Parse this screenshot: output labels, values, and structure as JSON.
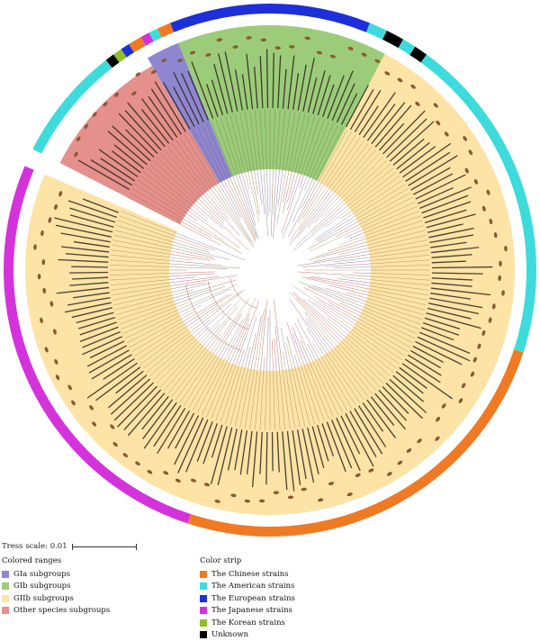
{
  "scale": {
    "label": "Tress scale: 0.01"
  },
  "legend_ranges": {
    "title": "Colored ranges",
    "items": [
      {
        "label": "GIa subgroups",
        "color": "#8e86cf"
      },
      {
        "label": "GIb subgroups",
        "color": "#9ccc7a"
      },
      {
        "label": "GIIb subgroups",
        "color": "#fde3a6"
      },
      {
        "label": "Other species subgroups",
        "color": "#e5908c"
      }
    ]
  },
  "legend_strip": {
    "title": "Color strip",
    "items": [
      {
        "label": "The Chinese strains",
        "color": "#f07a24"
      },
      {
        "label": "The American strains",
        "color": "#3ddbdb"
      },
      {
        "label": "The European strains",
        "color": "#1d2fd8"
      },
      {
        "label": "The Japanese strains",
        "color": "#d433dc"
      },
      {
        "label": "The Korean strains",
        "color": "#8fbf2a"
      },
      {
        "label": "Unknown",
        "color": "#000000"
      }
    ]
  }
}
